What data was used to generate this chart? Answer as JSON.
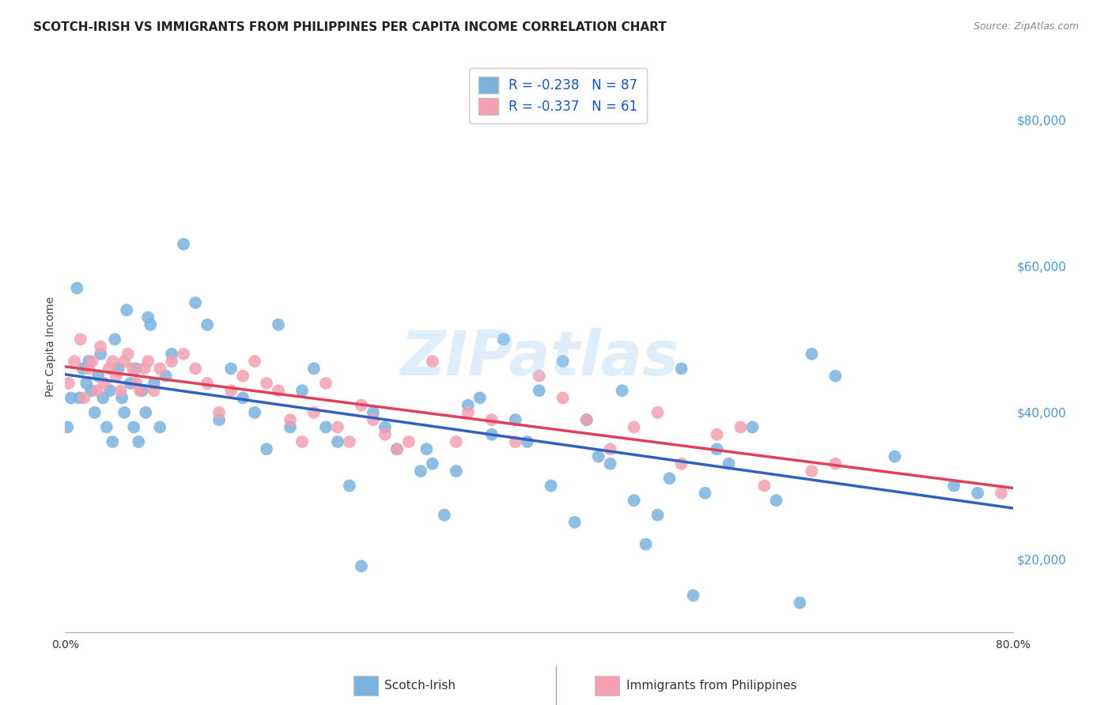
{
  "title": "SCOTCH-IRISH VS IMMIGRANTS FROM PHILIPPINES PER CAPITA INCOME CORRELATION CHART",
  "source": "Source: ZipAtlas.com",
  "ylabel": "Per Capita Income",
  "legend_label1": "Scotch-Irish",
  "legend_label2": "Immigrants from Philippines",
  "R1": "-0.238",
  "N1": "87",
  "R2": "-0.337",
  "N2": "61",
  "color1": "#7ab3e0",
  "color2": "#f4a0b0",
  "line_color1": "#3060c0",
  "line_color2": "#e0405a",
  "watermark": "ZIPatlas",
  "background_color": "#ffffff",
  "grid_color": "#cccccc",
  "ytick_labels": [
    "$20,000",
    "$40,000",
    "$60,000",
    "$80,000"
  ],
  "ytick_values": [
    20000,
    40000,
    60000,
    80000
  ],
  "ytick_color": "#4499dd",
  "scatter1_x": [
    0.2,
    0.5,
    1.0,
    1.2,
    1.5,
    1.8,
    2.0,
    2.2,
    2.5,
    2.8,
    3.0,
    3.2,
    3.5,
    3.8,
    4.0,
    4.2,
    4.5,
    4.8,
    5.0,
    5.2,
    5.5,
    5.8,
    6.0,
    6.2,
    6.5,
    6.8,
    7.0,
    7.2,
    7.5,
    8.0,
    8.5,
    9.0,
    10.0,
    11.0,
    12.0,
    13.0,
    14.0,
    15.0,
    16.0,
    17.0,
    18.0,
    19.0,
    20.0,
    21.0,
    22.0,
    23.0,
    24.0,
    25.0,
    26.0,
    27.0,
    28.0,
    30.0,
    32.0,
    33.0,
    35.0,
    37.0,
    38.0,
    40.0,
    42.0,
    44.0,
    45.0,
    47.0,
    50.0,
    52.0,
    54.0,
    55.0,
    60.0,
    63.0,
    65.0,
    70.0,
    75.0,
    77.0,
    30.5,
    31.0,
    34.0,
    36.0,
    39.0,
    41.0,
    43.0,
    46.0,
    48.0,
    49.0,
    51.0,
    53.0,
    56.0,
    58.0,
    62.0
  ],
  "scatter1_y": [
    38000,
    42000,
    57000,
    42000,
    46000,
    44000,
    47000,
    43000,
    40000,
    45000,
    48000,
    42000,
    38000,
    43000,
    36000,
    50000,
    46000,
    42000,
    40000,
    54000,
    44000,
    38000,
    46000,
    36000,
    43000,
    40000,
    53000,
    52000,
    44000,
    38000,
    45000,
    48000,
    63000,
    55000,
    52000,
    39000,
    46000,
    42000,
    40000,
    35000,
    52000,
    38000,
    43000,
    46000,
    38000,
    36000,
    30000,
    19000,
    40000,
    38000,
    35000,
    32000,
    26000,
    32000,
    42000,
    50000,
    39000,
    43000,
    47000,
    39000,
    34000,
    43000,
    26000,
    46000,
    29000,
    35000,
    28000,
    48000,
    45000,
    34000,
    30000,
    29000,
    35000,
    33000,
    41000,
    37000,
    36000,
    30000,
    25000,
    33000,
    28000,
    22000,
    31000,
    15000,
    33000,
    38000,
    14000
  ],
  "scatter2_x": [
    0.3,
    0.8,
    1.3,
    1.6,
    2.0,
    2.3,
    2.7,
    3.0,
    3.3,
    3.7,
    4.0,
    4.3,
    4.7,
    5.0,
    5.3,
    5.7,
    6.0,
    6.3,
    6.7,
    7.0,
    7.5,
    8.0,
    9.0,
    10.0,
    11.0,
    12.0,
    13.0,
    14.0,
    15.0,
    16.0,
    17.0,
    18.0,
    19.0,
    20.0,
    21.0,
    22.0,
    23.0,
    24.0,
    25.0,
    26.0,
    27.0,
    28.0,
    29.0,
    31.0,
    33.0,
    34.0,
    36.0,
    38.0,
    40.0,
    42.0,
    44.0,
    46.0,
    48.0,
    50.0,
    52.0,
    55.0,
    57.0,
    59.0,
    63.0,
    65.0,
    79.0
  ],
  "scatter2_y": [
    44000,
    47000,
    50000,
    42000,
    46000,
    47000,
    43000,
    49000,
    44000,
    46000,
    47000,
    45000,
    43000,
    47000,
    48000,
    46000,
    44000,
    43000,
    46000,
    47000,
    43000,
    46000,
    47000,
    48000,
    46000,
    44000,
    40000,
    43000,
    45000,
    47000,
    44000,
    43000,
    39000,
    36000,
    40000,
    44000,
    38000,
    36000,
    41000,
    39000,
    37000,
    35000,
    36000,
    47000,
    36000,
    40000,
    39000,
    36000,
    45000,
    42000,
    39000,
    35000,
    38000,
    40000,
    33000,
    37000,
    38000,
    30000,
    32000,
    33000,
    29000
  ],
  "xlim": [
    0,
    80
  ],
  "ylim": [
    10000,
    88000
  ]
}
